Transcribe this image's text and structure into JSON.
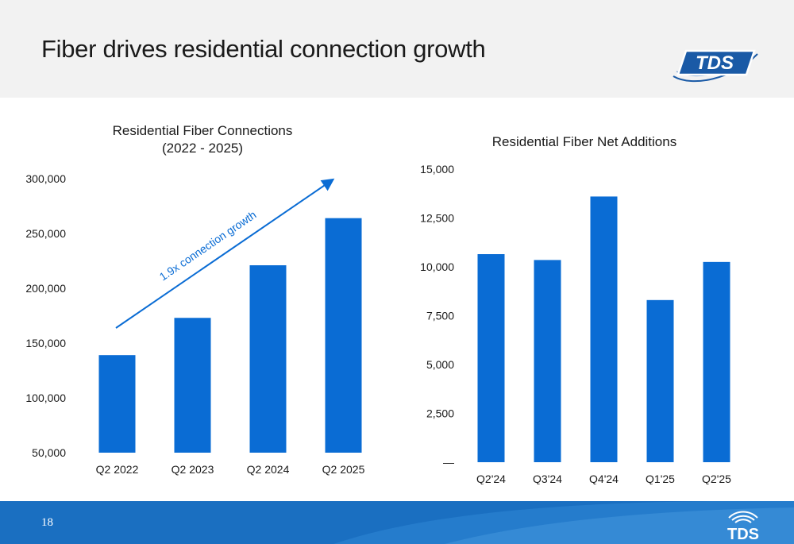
{
  "slide": {
    "title": "Fiber drives residential connection growth",
    "page_number": "18",
    "logo_text": "TDS",
    "colors": {
      "bar": "#0a6cd4",
      "header_bg": "#f2f2f2",
      "footer": "#1a6fc1",
      "text": "#1a1a1a"
    }
  },
  "chart_data": [
    {
      "type": "bar",
      "title": "Residential Fiber Connections",
      "subtitle": "(2022 - 2025)",
      "categories": [
        "Q2 2022",
        "Q2 2023",
        "Q2 2024",
        "Q2 2025"
      ],
      "values": [
        139000,
        173000,
        221000,
        264000
      ],
      "ylim": [
        50000,
        300000
      ],
      "yticks": [
        50000,
        100000,
        150000,
        200000,
        250000,
        300000
      ],
      "ytick_labels": [
        "50,000",
        "100,000",
        "150,000",
        "200,000",
        "250,000",
        "300,000"
      ],
      "grid": false,
      "annotation": "1.9x connection growth"
    },
    {
      "type": "bar",
      "title": "Residential Fiber Net Additions",
      "categories": [
        "Q2'24",
        "Q3'24",
        "Q4'24",
        "Q1'25",
        "Q2'25"
      ],
      "values": [
        10650,
        10350,
        13600,
        8300,
        10250
      ],
      "ylim": [
        0,
        15000
      ],
      "yticks": [
        0,
        2500,
        5000,
        7500,
        10000,
        12500,
        15000
      ],
      "ytick_labels": [
        "—",
        "2,500",
        "5,000",
        "7,500",
        "10,000",
        "12,500",
        "15,000"
      ],
      "grid": false
    }
  ]
}
